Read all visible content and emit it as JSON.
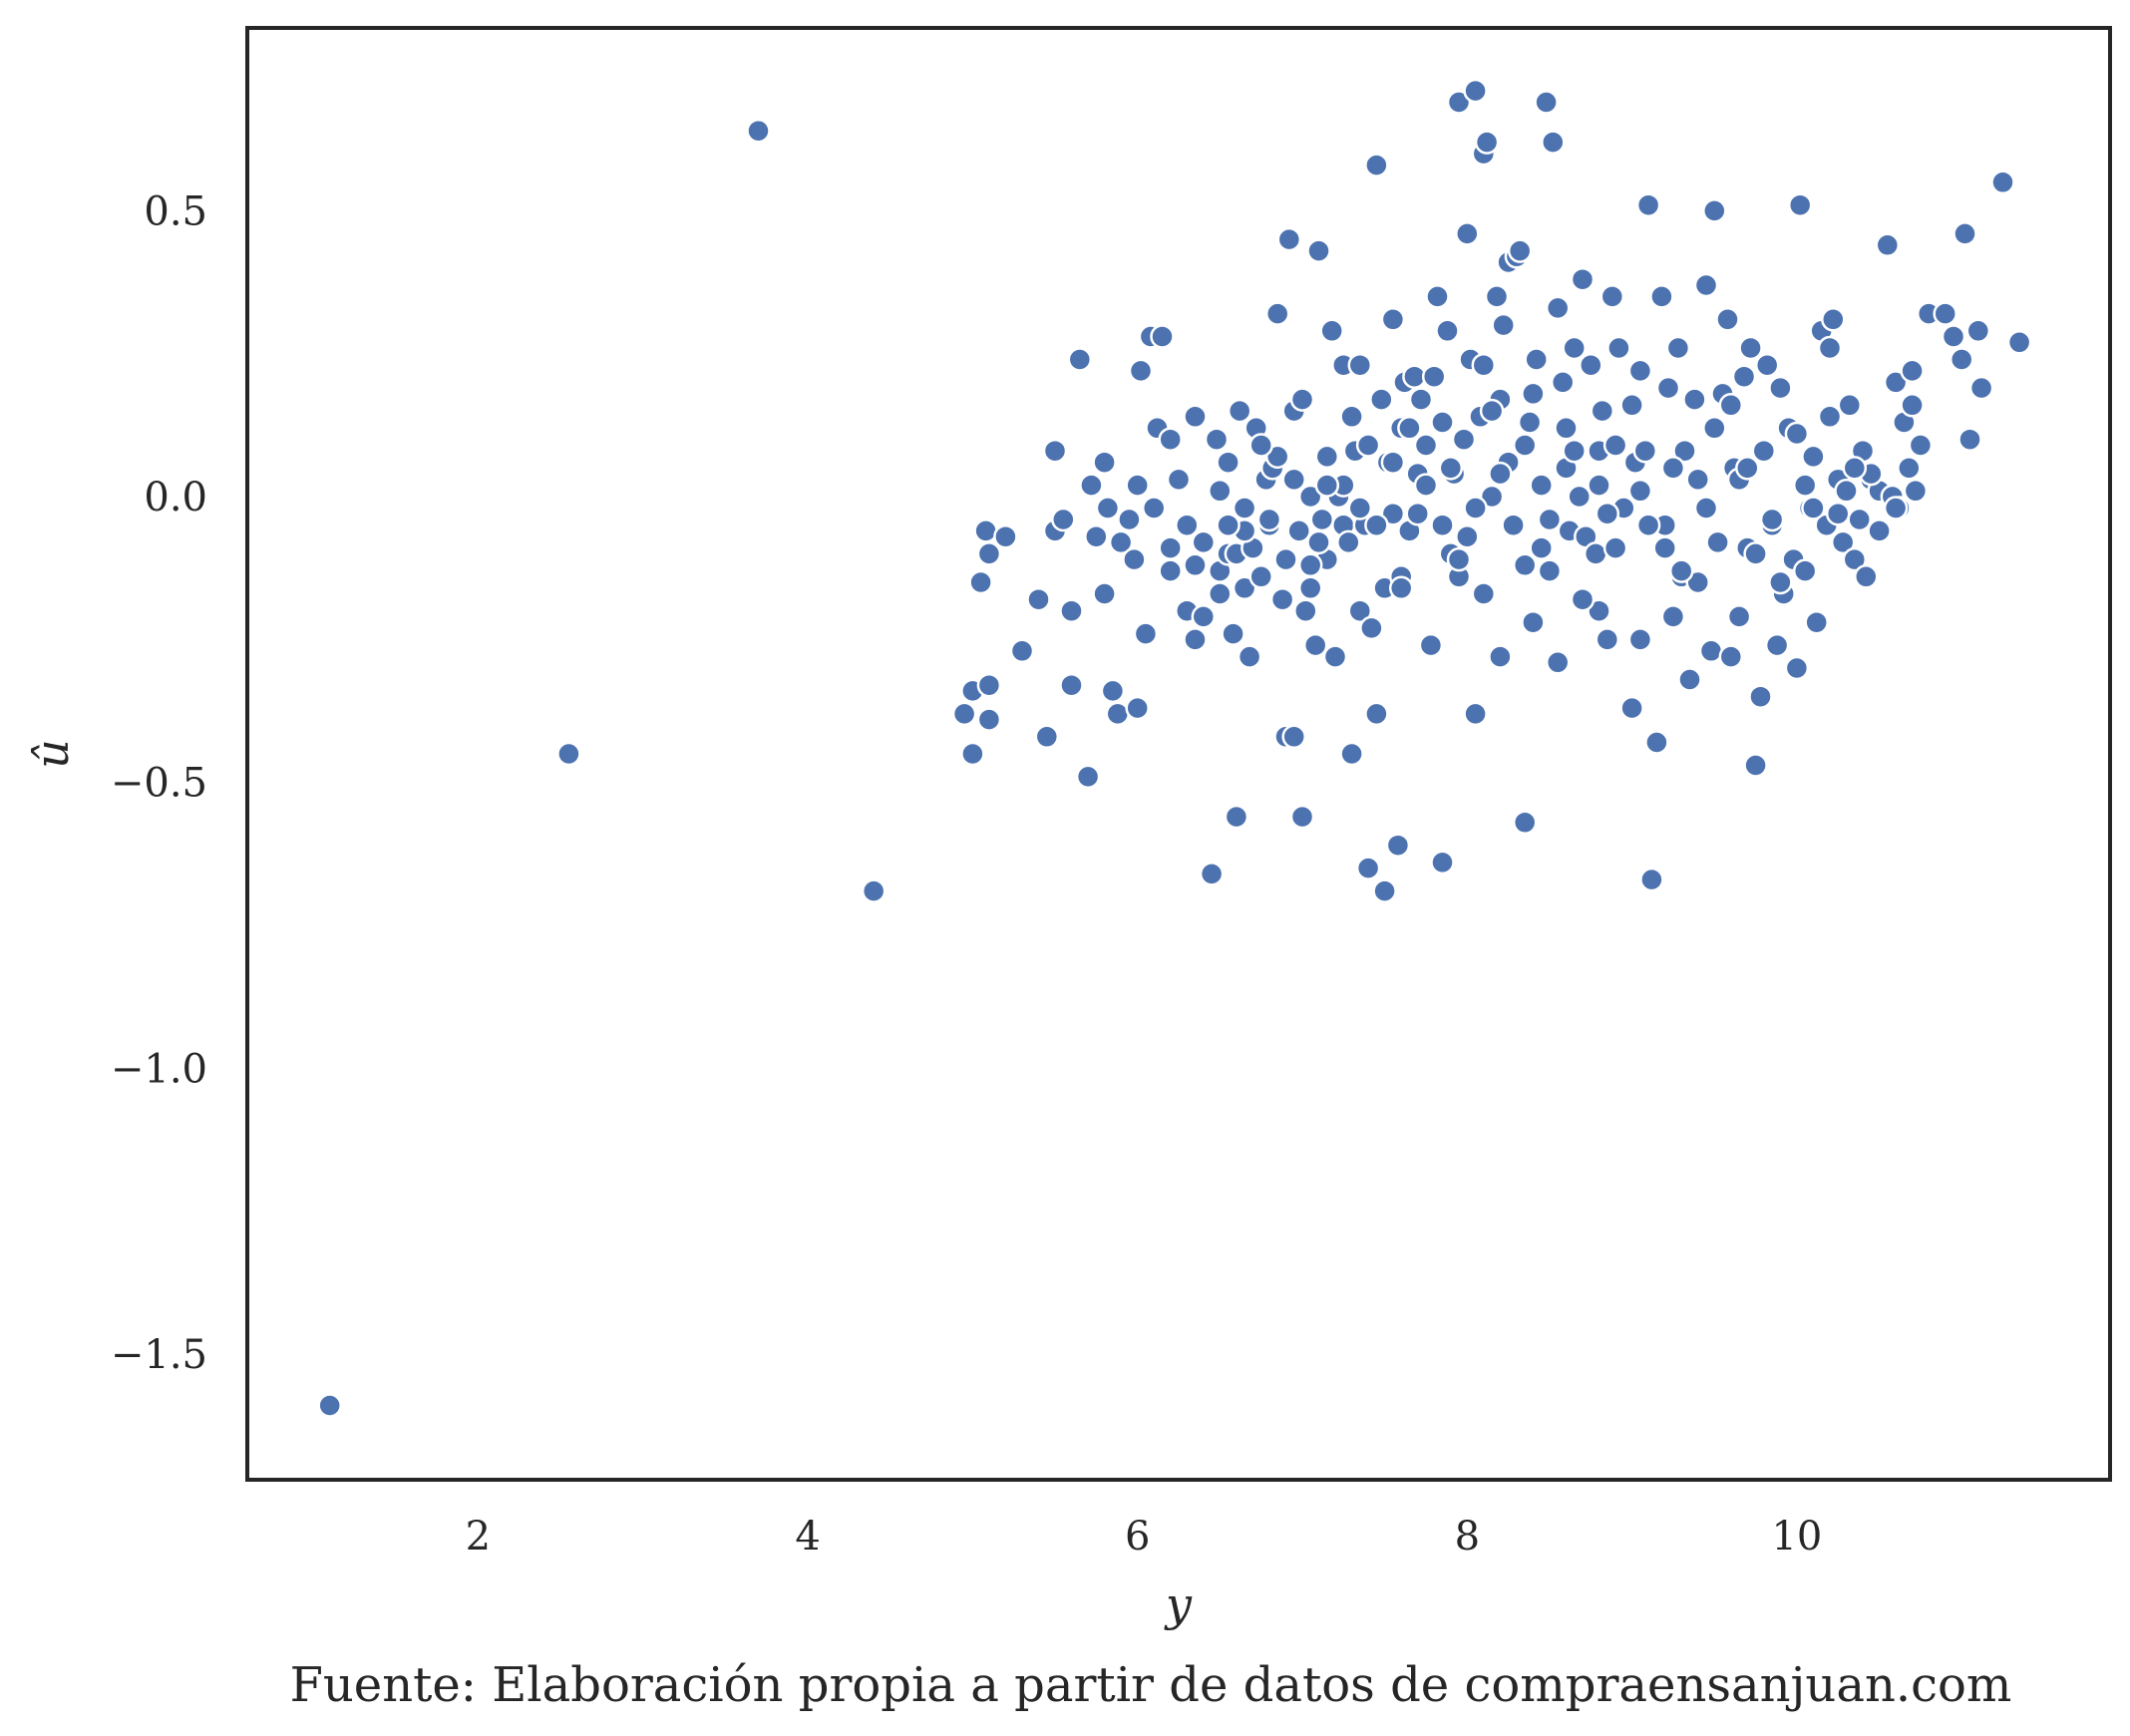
{
  "caption": "Fuente: Elaboración propia a partir de datos de compraensanjuan.com",
  "chart_data": {
    "type": "scatter",
    "xlabel": "y",
    "ylabel": "û",
    "xlim": [
      0.6,
      11.9
    ],
    "ylim": [
      -1.72,
      0.82
    ],
    "x_ticks": [
      2,
      4,
      6,
      8,
      10
    ],
    "x_tick_labels": [
      "2",
      "4",
      "6",
      "8",
      "10"
    ],
    "y_ticks": [
      -1.5,
      -1.0,
      -0.5,
      0.0,
      0.5
    ],
    "y_tick_labels": [
      "−1.5",
      "−1.0",
      "−0.5",
      "0.0",
      "0.5"
    ],
    "grid": false,
    "point_color": "#4c72b0",
    "edge_color": "#ffffff",
    "frame_color": "#262626",
    "points": [
      [
        1.1,
        -1.59
      ],
      [
        2.55,
        -0.45
      ],
      [
        3.7,
        0.64
      ],
      [
        4.4,
        -0.69
      ],
      [
        4.95,
        -0.38
      ],
      [
        5.0,
        -0.45
      ],
      [
        5.0,
        -0.34
      ],
      [
        5.1,
        -0.33
      ],
      [
        5.1,
        -0.39
      ],
      [
        5.05,
        -0.15
      ],
      [
        5.1,
        -0.1
      ],
      [
        5.08,
        -0.06
      ],
      [
        5.2,
        -0.07
      ],
      [
        5.3,
        -0.27
      ],
      [
        5.4,
        -0.18
      ],
      [
        5.45,
        -0.42
      ],
      [
        5.5,
        -0.06
      ],
      [
        5.5,
        0.08
      ],
      [
        5.55,
        -0.04
      ],
      [
        5.6,
        -0.2
      ],
      [
        5.6,
        -0.33
      ],
      [
        5.65,
        0.24
      ],
      [
        5.7,
        -0.49
      ],
      [
        5.72,
        0.02
      ],
      [
        5.75,
        -0.07
      ],
      [
        5.8,
        -0.17
      ],
      [
        5.8,
        0.06
      ],
      [
        5.82,
        -0.02
      ],
      [
        5.85,
        -0.34
      ],
      [
        5.88,
        -0.38
      ],
      [
        5.9,
        -0.08
      ],
      [
        5.95,
        -0.04
      ],
      [
        5.98,
        -0.11
      ],
      [
        6.0,
        0.02
      ],
      [
        6.0,
        -0.37
      ],
      [
        6.02,
        0.22
      ],
      [
        6.05,
        -0.24
      ],
      [
        6.08,
        0.28
      ],
      [
        6.1,
        -0.02
      ],
      [
        6.12,
        0.12
      ],
      [
        6.15,
        0.28
      ],
      [
        6.2,
        -0.09
      ],
      [
        6.2,
        0.1
      ],
      [
        6.25,
        0.03
      ],
      [
        6.3,
        -0.05
      ],
      [
        6.3,
        -0.2
      ],
      [
        6.35,
        -0.12
      ],
      [
        6.35,
        -0.25
      ],
      [
        6.4,
        -0.08
      ],
      [
        6.4,
        -0.21
      ],
      [
        6.45,
        -0.66
      ],
      [
        6.48,
        0.1
      ],
      [
        6.5,
        -0.17
      ],
      [
        6.5,
        -0.13
      ],
      [
        6.55,
        -0.1
      ],
      [
        6.55,
        0.06
      ],
      [
        6.58,
        -0.24
      ],
      [
        6.6,
        -0.56
      ],
      [
        6.6,
        -0.1
      ],
      [
        6.62,
        0.15
      ],
      [
        6.65,
        -0.02
      ],
      [
        6.65,
        -0.16
      ],
      [
        6.68,
        -0.28
      ],
      [
        6.7,
        -0.09
      ],
      [
        6.72,
        0.12
      ],
      [
        6.75,
        -0.14
      ],
      [
        6.78,
        0.03
      ],
      [
        6.8,
        -0.05
      ],
      [
        6.82,
        0.05
      ],
      [
        6.85,
        0.32
      ],
      [
        6.88,
        -0.18
      ],
      [
        6.9,
        -0.42
      ],
      [
        6.9,
        -0.11
      ],
      [
        6.92,
        0.45
      ],
      [
        6.95,
        0.15
      ],
      [
        6.95,
        -0.42
      ],
      [
        6.98,
        -0.06
      ],
      [
        7.0,
        0.17
      ],
      [
        7.0,
        -0.56
      ],
      [
        7.02,
        -0.2
      ],
      [
        7.05,
        -0.16
      ],
      [
        7.05,
        0.0
      ],
      [
        7.08,
        -0.26
      ],
      [
        7.1,
        0.43
      ],
      [
        7.12,
        -0.04
      ],
      [
        7.15,
        0.07
      ],
      [
        7.15,
        -0.11
      ],
      [
        7.18,
        0.29
      ],
      [
        7.2,
        -0.28
      ],
      [
        7.22,
        0.0
      ],
      [
        7.25,
        -0.05
      ],
      [
        7.25,
        0.23
      ],
      [
        7.28,
        -0.08
      ],
      [
        7.3,
        -0.45
      ],
      [
        7.32,
        0.08
      ],
      [
        7.35,
        -0.2
      ],
      [
        7.35,
        0.23
      ],
      [
        7.38,
        -0.05
      ],
      [
        7.4,
        -0.65
      ],
      [
        7.42,
        -0.23
      ],
      [
        7.45,
        0.58
      ],
      [
        7.45,
        -0.38
      ],
      [
        7.48,
        0.17
      ],
      [
        7.5,
        -0.16
      ],
      [
        7.5,
        -0.69
      ],
      [
        7.52,
        0.06
      ],
      [
        7.55,
        -0.03
      ],
      [
        7.55,
        0.31
      ],
      [
        7.58,
        -0.61
      ],
      [
        7.6,
        0.12
      ],
      [
        7.6,
        -0.14
      ],
      [
        7.62,
        0.2
      ],
      [
        7.65,
        -0.06
      ],
      [
        7.68,
        0.21
      ],
      [
        7.7,
        0.04
      ],
      [
        7.72,
        0.17
      ],
      [
        7.75,
        0.09
      ],
      [
        7.78,
        -0.26
      ],
      [
        7.8,
        0.21
      ],
      [
        7.82,
        0.35
      ],
      [
        7.85,
        -0.64
      ],
      [
        7.85,
        -0.05
      ],
      [
        7.88,
        0.29
      ],
      [
        7.9,
        -0.1
      ],
      [
        7.92,
        0.04
      ],
      [
        7.95,
        0.69
      ],
      [
        7.95,
        -0.14
      ],
      [
        7.98,
        0.1
      ],
      [
        8.0,
        0.46
      ],
      [
        8.0,
        -0.07
      ],
      [
        8.02,
        0.24
      ],
      [
        8.05,
        0.71
      ],
      [
        8.05,
        -0.38
      ],
      [
        8.08,
        0.14
      ],
      [
        8.1,
        0.6
      ],
      [
        8.1,
        0.23
      ],
      [
        8.12,
        0.62
      ],
      [
        8.15,
        -0.0
      ],
      [
        8.18,
        0.35
      ],
      [
        8.2,
        0.17
      ],
      [
        8.2,
        -0.28
      ],
      [
        8.22,
        0.3
      ],
      [
        8.25,
        0.41
      ],
      [
        8.28,
        -0.05
      ],
      [
        8.3,
        0.42
      ],
      [
        8.32,
        0.43
      ],
      [
        8.35,
        -0.57
      ],
      [
        8.35,
        0.09
      ],
      [
        8.38,
        0.13
      ],
      [
        8.4,
        -0.22
      ],
      [
        8.42,
        0.24
      ],
      [
        8.45,
        -0.09
      ],
      [
        8.48,
        0.69
      ],
      [
        8.5,
        -0.13
      ],
      [
        8.52,
        0.62
      ],
      [
        8.55,
        0.33
      ],
      [
        8.55,
        -0.29
      ],
      [
        8.58,
        0.2
      ],
      [
        8.6,
        0.05
      ],
      [
        8.62,
        -0.06
      ],
      [
        8.65,
        0.26
      ],
      [
        8.68,
        0.0
      ],
      [
        8.7,
        0.38
      ],
      [
        8.72,
        -0.07
      ],
      [
        8.75,
        0.23
      ],
      [
        8.78,
        -0.1
      ],
      [
        8.8,
        -0.2
      ],
      [
        8.8,
        0.08
      ],
      [
        8.82,
        0.15
      ],
      [
        8.85,
        -0.25
      ],
      [
        8.88,
        0.35
      ],
      [
        8.9,
        -0.09
      ],
      [
        8.92,
        0.26
      ],
      [
        8.95,
        -0.02
      ],
      [
        9.0,
        -0.37
      ],
      [
        9.02,
        0.06
      ],
      [
        9.05,
        0.22
      ],
      [
        9.05,
        -0.25
      ],
      [
        9.08,
        0.08
      ],
      [
        9.1,
        0.51
      ],
      [
        9.12,
        -0.67
      ],
      [
        9.15,
        -0.43
      ],
      [
        9.18,
        0.35
      ],
      [
        9.2,
        -0.05
      ],
      [
        9.22,
        0.19
      ],
      [
        9.25,
        -0.21
      ],
      [
        9.28,
        0.26
      ],
      [
        9.3,
        -0.14
      ],
      [
        9.32,
        0.08
      ],
      [
        9.35,
        -0.32
      ],
      [
        9.38,
        0.17
      ],
      [
        9.4,
        -0.15
      ],
      [
        9.45,
        0.37
      ],
      [
        9.48,
        -0.27
      ],
      [
        9.5,
        0.5
      ],
      [
        9.52,
        -0.08
      ],
      [
        9.55,
        0.18
      ],
      [
        9.58,
        0.31
      ],
      [
        9.6,
        -0.28
      ],
      [
        9.62,
        0.05
      ],
      [
        9.65,
        -0.21
      ],
      [
        9.68,
        0.21
      ],
      [
        9.7,
        -0.09
      ],
      [
        9.72,
        0.26
      ],
      [
        9.75,
        -0.47
      ],
      [
        9.78,
        -0.35
      ],
      [
        9.8,
        0.08
      ],
      [
        9.82,
        0.23
      ],
      [
        9.85,
        -0.05
      ],
      [
        9.88,
        -0.26
      ],
      [
        9.9,
        0.19
      ],
      [
        9.92,
        -0.17
      ],
      [
        9.95,
        0.12
      ],
      [
        9.98,
        -0.11
      ],
      [
        10.0,
        -0.3
      ],
      [
        10.02,
        0.51
      ],
      [
        10.05,
        -0.13
      ],
      [
        10.08,
        -0.02
      ],
      [
        10.1,
        0.07
      ],
      [
        10.12,
        -0.22
      ],
      [
        10.15,
        0.29
      ],
      [
        10.18,
        -0.05
      ],
      [
        10.2,
        0.26
      ],
      [
        10.22,
        0.31
      ],
      [
        10.25,
        0.03
      ],
      [
        10.28,
        -0.08
      ],
      [
        10.3,
        0.01
      ],
      [
        10.32,
        0.16
      ],
      [
        10.35,
        -0.11
      ],
      [
        10.38,
        -0.04
      ],
      [
        10.4,
        0.08
      ],
      [
        10.42,
        -0.14
      ],
      [
        10.45,
        0.03
      ],
      [
        10.5,
        0.01
      ],
      [
        10.55,
        0.44
      ],
      [
        10.58,
        0.0
      ],
      [
        10.6,
        0.2
      ],
      [
        10.62,
        -0.02
      ],
      [
        10.65,
        0.13
      ],
      [
        10.68,
        0.05
      ],
      [
        10.7,
        0.22
      ],
      [
        10.72,
        0.01
      ],
      [
        10.75,
        0.09
      ],
      [
        10.8,
        0.32
      ],
      [
        10.9,
        0.32
      ],
      [
        10.95,
        0.28
      ],
      [
        11.0,
        0.24
      ],
      [
        11.02,
        0.46
      ],
      [
        11.05,
        0.1
      ],
      [
        11.1,
        0.29
      ],
      [
        11.12,
        0.19
      ],
      [
        11.25,
        0.55
      ],
      [
        11.35,
        0.27
      ],
      [
        7.25,
        0.02
      ],
      [
        7.35,
        -0.02
      ],
      [
        7.55,
        0.06
      ],
      [
        7.7,
        -0.03
      ],
      [
        7.9,
        0.05
      ],
      [
        8.05,
        -0.02
      ],
      [
        8.25,
        0.06
      ],
      [
        8.45,
        0.02
      ],
      [
        8.65,
        0.08
      ],
      [
        8.85,
        -0.03
      ],
      [
        9.05,
        0.01
      ],
      [
        9.25,
        0.05
      ],
      [
        9.45,
        -0.02
      ],
      [
        9.65,
        0.03
      ],
      [
        9.85,
        -0.04
      ],
      [
        10.05,
        0.02
      ],
      [
        10.25,
        -0.03
      ],
      [
        10.45,
        0.04
      ],
      [
        6.8,
        -0.04
      ],
      [
        6.95,
        0.03
      ],
      [
        7.1,
        -0.08
      ],
      [
        7.4,
        0.09
      ],
      [
        7.65,
        0.12
      ],
      [
        7.95,
        -0.11
      ],
      [
        8.15,
        0.15
      ],
      [
        8.35,
        -0.12
      ],
      [
        8.6,
        0.12
      ],
      [
        8.9,
        0.09
      ],
      [
        9.2,
        -0.09
      ],
      [
        9.5,
        0.12
      ],
      [
        9.75,
        -0.1
      ],
      [
        10.0,
        0.11
      ],
      [
        6.5,
        0.01
      ],
      [
        6.65,
        -0.06
      ],
      [
        6.85,
        0.07
      ],
      [
        7.05,
        -0.12
      ],
      [
        7.3,
        0.14
      ],
      [
        7.6,
        -0.16
      ],
      [
        7.85,
        0.13
      ],
      [
        8.1,
        -0.17
      ],
      [
        8.4,
        0.18
      ],
      [
        8.7,
        -0.18
      ],
      [
        9.0,
        0.16
      ],
      [
        9.3,
        -0.13
      ],
      [
        9.6,
        0.16
      ],
      [
        9.9,
        -0.15
      ],
      [
        10.2,
        0.14
      ],
      [
        10.5,
        -0.06
      ],
      [
        10.7,
        0.16
      ],
      [
        6.2,
        -0.13
      ],
      [
        6.35,
        0.14
      ],
      [
        6.55,
        -0.05
      ],
      [
        6.75,
        0.09
      ],
      [
        7.15,
        0.02
      ],
      [
        7.45,
        -0.05
      ],
      [
        7.75,
        0.02
      ],
      [
        8.2,
        0.04
      ],
      [
        8.5,
        -0.04
      ],
      [
        8.8,
        0.02
      ],
      [
        9.1,
        -0.05
      ],
      [
        9.4,
        0.03
      ],
      [
        9.7,
        0.05
      ],
      [
        10.1,
        -0.02
      ],
      [
        10.35,
        0.05
      ],
      [
        10.6,
        -0.02
      ]
    ]
  }
}
